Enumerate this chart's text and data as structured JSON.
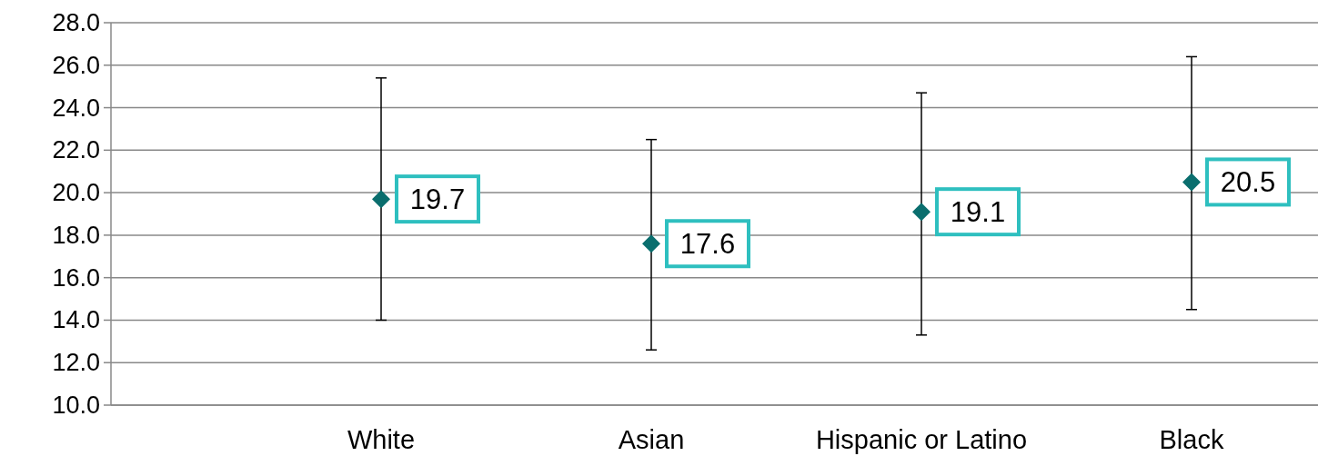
{
  "chart_data": {
    "type": "scatter",
    "categories": [
      "White",
      "Asian",
      "Hispanic or Latino",
      "Black"
    ],
    "values": [
      19.7,
      17.6,
      19.1,
      20.5
    ],
    "errors": [
      [
        14.0,
        25.4
      ],
      [
        12.6,
        22.5
      ],
      [
        13.3,
        24.7
      ],
      [
        14.5,
        26.4
      ]
    ],
    "color": "#0a6e6e",
    "marker": "diamond",
    "data_labels": true,
    "grid": "y",
    "ylim": [
      10,
      28
    ],
    "yticks": [
      {
        "value": 10,
        "label": "10.0"
      },
      {
        "value": 12,
        "label": "12.0"
      },
      {
        "value": 14,
        "label": "14.0"
      },
      {
        "value": 16,
        "label": "16.0"
      },
      {
        "value": 18,
        "label": "18.0"
      },
      {
        "value": 20,
        "label": "20.0"
      },
      {
        "value": 22,
        "label": "22.0"
      },
      {
        "value": 24,
        "label": "24.0"
      },
      {
        "value": 26,
        "label": "26.0"
      },
      {
        "value": 28,
        "label": "28.0"
      }
    ]
  }
}
